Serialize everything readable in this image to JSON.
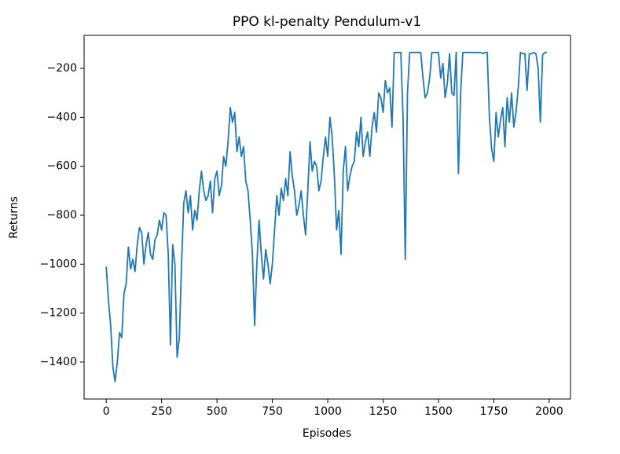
{
  "chart_data": {
    "type": "line",
    "title": "PPO kl-penalty Pendulum-v1",
    "x_label": "Episodes",
    "y_label": "Returns",
    "x": [
      0,
      10,
      20,
      30,
      40,
      50,
      60,
      70,
      80,
      90,
      100,
      110,
      120,
      130,
      140,
      150,
      160,
      170,
      180,
      190,
      200,
      210,
      220,
      230,
      240,
      250,
      260,
      270,
      280,
      290,
      300,
      310,
      320,
      330,
      340,
      350,
      360,
      370,
      380,
      390,
      400,
      410,
      420,
      430,
      440,
      450,
      460,
      470,
      480,
      490,
      500,
      510,
      520,
      530,
      540,
      550,
      560,
      570,
      580,
      590,
      600,
      610,
      620,
      630,
      640,
      650,
      660,
      670,
      680,
      690,
      700,
      710,
      720,
      730,
      740,
      750,
      760,
      770,
      780,
      790,
      800,
      810,
      820,
      830,
      840,
      850,
      860,
      870,
      880,
      890,
      900,
      910,
      920,
      930,
      940,
      950,
      960,
      970,
      980,
      990,
      1000,
      1010,
      1020,
      1030,
      1040,
      1050,
      1060,
      1070,
      1080,
      1090,
      1100,
      1110,
      1120,
      1130,
      1140,
      1150,
      1160,
      1170,
      1180,
      1190,
      1200,
      1210,
      1220,
      1230,
      1240,
      1250,
      1260,
      1270,
      1280,
      1290,
      1300,
      1310,
      1320,
      1330,
      1340,
      1350,
      1360,
      1370,
      1380,
      1390,
      1400,
      1410,
      1420,
      1430,
      1440,
      1450,
      1460,
      1470,
      1480,
      1490,
      1500,
      1510,
      1520,
      1530,
      1540,
      1550,
      1560,
      1570,
      1580,
      1590,
      1600,
      1610,
      1620,
      1630,
      1640,
      1650,
      1660,
      1670,
      1680,
      1690,
      1700,
      1710,
      1720,
      1730,
      1740,
      1750,
      1760,
      1770,
      1780,
      1790,
      1800,
      1810,
      1820,
      1830,
      1840,
      1850,
      1860,
      1870,
      1880,
      1890,
      1900,
      1910,
      1920,
      1930,
      1940,
      1950,
      1960,
      1970,
      1980,
      1990
    ],
    "series": [
      {
        "name": "Returns",
        "color": "#1f77b4",
        "values": [
          -1010,
          -1150,
          -1250,
          -1420,
          -1480,
          -1400,
          -1280,
          -1300,
          -1120,
          -1080,
          -930,
          -1020,
          -980,
          -1030,
          -920,
          -850,
          -870,
          -1000,
          -920,
          -870,
          -960,
          -980,
          -900,
          -880,
          -820,
          -860,
          -790,
          -800,
          -960,
          -1330,
          -920,
          -1000,
          -1380,
          -1300,
          -1000,
          -750,
          -700,
          -790,
          -720,
          -860,
          -780,
          -820,
          -700,
          -620,
          -700,
          -740,
          -720,
          -660,
          -790,
          -650,
          -620,
          -720,
          -680,
          -560,
          -600,
          -500,
          -360,
          -420,
          -380,
          -540,
          -480,
          -560,
          -520,
          -660,
          -700,
          -820,
          -960,
          -1250,
          -1000,
          -820,
          -960,
          -1060,
          -940,
          -1000,
          -1080,
          -1000,
          -860,
          -720,
          -800,
          -690,
          -740,
          -650,
          -720,
          -540,
          -640,
          -700,
          -800,
          -760,
          -700,
          -800,
          -880,
          -700,
          -500,
          -620,
          -580,
          -600,
          -700,
          -660,
          -560,
          -480,
          -560,
          -400,
          -480,
          -640,
          -860,
          -780,
          -960,
          -620,
          -520,
          -700,
          -640,
          -600,
          -580,
          -460,
          -520,
          -400,
          -560,
          -500,
          -460,
          -560,
          -440,
          -380,
          -460,
          -300,
          -320,
          -380,
          -250,
          -300,
          -280,
          -440,
          -135,
          -135,
          -135,
          -135,
          -400,
          -980,
          -300,
          -135,
          -135,
          -135,
          -135,
          -135,
          -135,
          -240,
          -320,
          -300,
          -240,
          -135,
          -135,
          -135,
          -135,
          -240,
          -180,
          -320,
          -260,
          -140,
          -300,
          -310,
          -135,
          -630,
          -300,
          -135,
          -135,
          -135,
          -135,
          -135,
          -135,
          -135,
          -135,
          -135,
          -140,
          -135,
          -135,
          -400,
          -530,
          -580,
          -380,
          -480,
          -410,
          -360,
          -520,
          -320,
          -420,
          -300,
          -440,
          -380,
          -280,
          -135,
          -140,
          -140,
          -290,
          -140,
          -140,
          -135,
          -140,
          -200,
          -420,
          -145,
          -135,
          -135
        ]
      }
    ],
    "xlim": [
      -100,
      2096
    ],
    "ylim": [
      -1551,
      -65
    ],
    "xticks": [
      0,
      250,
      500,
      750,
      1000,
      1250,
      1500,
      1750,
      2000
    ],
    "yticks": [
      {
        "value": -1400,
        "label": "−1400"
      },
      {
        "value": -1200,
        "label": "−1200"
      },
      {
        "value": -1000,
        "label": "−1000"
      },
      {
        "value": -800,
        "label": "−800"
      },
      {
        "value": -600,
        "label": "−600"
      },
      {
        "value": -400,
        "label": "−400"
      },
      {
        "value": -200,
        "label": "−200"
      }
    ],
    "grid": false
  }
}
